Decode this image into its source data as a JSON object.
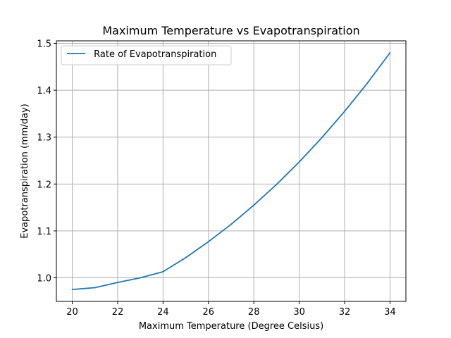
{
  "chart_data": {
    "type": "line",
    "title": "Maximum Temperature  vs Evapotranspiration",
    "xlabel": "Maximum Temperature (Degree Celsius)",
    "ylabel": "Evapotranspiration (mm/day)",
    "xlim": [
      19.3,
      34.7
    ],
    "ylim": [
      0.9497,
      1.5053
    ],
    "grid": true,
    "legend_position": "upper-left",
    "x_ticks": [
      "20",
      "22",
      "24",
      "26",
      "28",
      "30",
      "32",
      "34"
    ],
    "y_ticks": [
      "1.0",
      "1.1",
      "1.2",
      "1.3",
      "1.4",
      "1.5"
    ],
    "x": [
      20,
      21,
      22,
      23,
      24,
      25,
      26,
      27,
      28,
      29,
      30,
      31,
      32,
      33,
      34
    ],
    "series": [
      {
        "name": " Rate of Evapotranspiration",
        "color": "#1f77b4",
        "values": [
          0.975,
          0.979,
          0.99,
          1.0,
          1.013,
          1.043,
          1.077,
          1.114,
          1.155,
          1.199,
          1.247,
          1.299,
          1.355,
          1.415,
          1.48
        ]
      }
    ]
  }
}
